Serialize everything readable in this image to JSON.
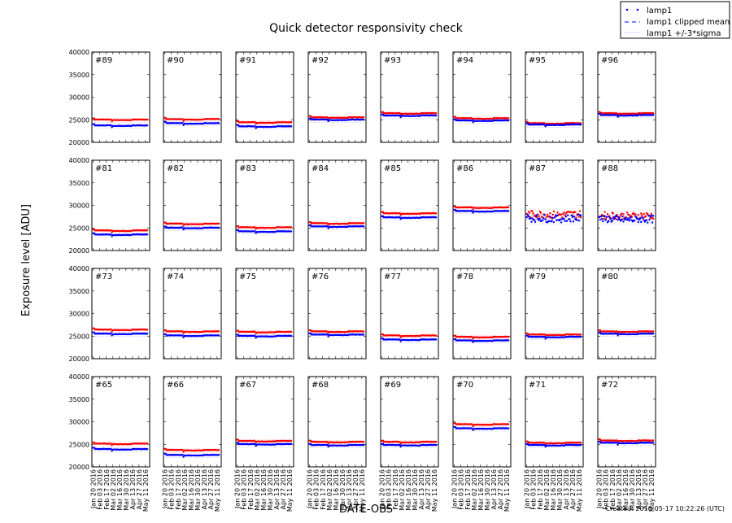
{
  "chart_data": {
    "type": "scatter",
    "title": "Quick detector responsivity check",
    "xlabel": "DATE-OBS",
    "ylabel": "Exposure level [ADU]",
    "ylim": [
      20000,
      40000
    ],
    "yticks": [
      "20000",
      "25000",
      "30000",
      "35000",
      "40000"
    ],
    "xlim": [
      "2016-01-17",
      "2016-05-20"
    ],
    "xticks": [
      "Jan 20 2016",
      "Feb 03 2016",
      "Feb 17 2016",
      "Mar 02 2016",
      "Mar 16 2016",
      "Mar 30 2016",
      "Apr 13 2016",
      "Apr 27 2016",
      "May 11 2016"
    ],
    "xtick_dates": [
      "2016-01-20",
      "2016-02-03",
      "2016-02-17",
      "2016-03-02",
      "2016-03-16",
      "2016-03-30",
      "2016-04-13",
      "2016-04-27",
      "2016-05-11"
    ],
    "date_range": [
      "2016-01-20",
      "2016-05-16"
    ],
    "grid": false,
    "legend": {
      "placement": "top-right",
      "entries": [
        "lamp1",
        "lamp1 clipped mean",
        "lamp1 +/-3*sigma"
      ]
    },
    "series_colors": {
      "lamp1": "#0000ff",
      "second": "#ff0000"
    },
    "panels": [
      {
        "label": "#89",
        "lamp1": 23600,
        "second": 24900
      },
      {
        "label": "#90",
        "lamp1": 24100,
        "second": 25000
      },
      {
        "label": "#91",
        "lamp1": 23400,
        "second": 24300
      },
      {
        "label": "#92",
        "lamp1": 24900,
        "second": 25400
      },
      {
        "label": "#93",
        "lamp1": 25800,
        "second": 26300
      },
      {
        "label": "#94",
        "lamp1": 24700,
        "second": 25200
      },
      {
        "label": "#95",
        "lamp1": 23800,
        "second": 24100
      },
      {
        "label": "#96",
        "lamp1": 25900,
        "second": 26300
      },
      {
        "label": "#81",
        "lamp1": 23400,
        "second": 24300
      },
      {
        "label": "#82",
        "lamp1": 24900,
        "second": 25800
      },
      {
        "label": "#83",
        "lamp1": 24100,
        "second": 25000
      },
      {
        "label": "#84",
        "lamp1": 25200,
        "second": 25900
      },
      {
        "label": "#85",
        "lamp1": 27200,
        "second": 28100
      },
      {
        "label": "#86",
        "lamp1": 28600,
        "second": 29400
      },
      {
        "label": "#87",
        "lamp1": 27000,
        "second": 27900,
        "noisy": true
      },
      {
        "label": "#88",
        "lamp1": 26800,
        "second": 27600,
        "noisy": true
      },
      {
        "label": "#73",
        "lamp1": 25400,
        "second": 26300
      },
      {
        "label": "#74",
        "lamp1": 25000,
        "second": 25900
      },
      {
        "label": "#75",
        "lamp1": 24900,
        "second": 25800
      },
      {
        "label": "#76",
        "lamp1": 25200,
        "second": 25900
      },
      {
        "label": "#77",
        "lamp1": 24100,
        "second": 25000
      },
      {
        "label": "#78",
        "lamp1": 23900,
        "second": 24700
      },
      {
        "label": "#79",
        "lamp1": 24700,
        "second": 25200
      },
      {
        "label": "#80",
        "lamp1": 25400,
        "second": 25900
      },
      {
        "label": "#65",
        "lamp1": 23800,
        "second": 25000
      },
      {
        "label": "#66",
        "lamp1": 22500,
        "second": 23600
      },
      {
        "label": "#67",
        "lamp1": 24900,
        "second": 25600
      },
      {
        "label": "#68",
        "lamp1": 24700,
        "second": 25400
      },
      {
        "label": "#69",
        "lamp1": 24700,
        "second": 25400
      },
      {
        "label": "#70",
        "lamp1": 28400,
        "second": 29300
      },
      {
        "label": "#71",
        "lamp1": 24700,
        "second": 25200
      },
      {
        "label": "#72",
        "lamp1": 25200,
        "second": 25700
      }
    ]
  },
  "footer": "Created: 2016-05-17 10:22:26 (UTC)"
}
